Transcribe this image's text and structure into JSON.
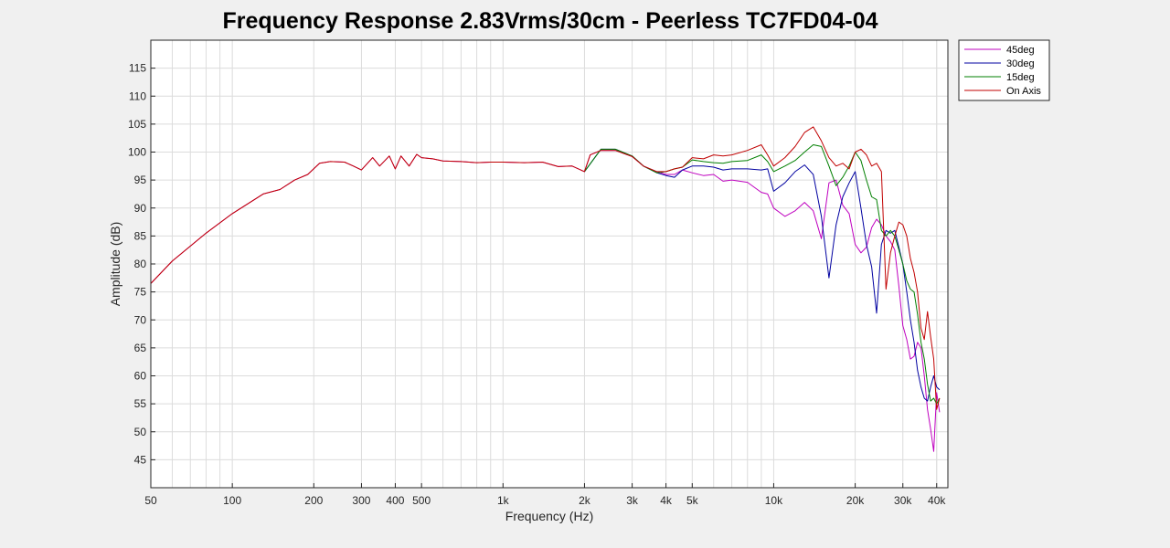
{
  "chart_data": {
    "type": "line",
    "title": "Frequency Response 2.83Vrms/30cm - Peerless TC7FD04-04",
    "xlabel": "Frequency (Hz)",
    "ylabel": "Amplitude (dB)",
    "xscale": "log",
    "xlim": [
      50,
      44000
    ],
    "ylim": [
      40,
      120
    ],
    "grid": true,
    "legend_position": "outside-top-right",
    "x_ticks": [
      50,
      100,
      200,
      300,
      400,
      500,
      1000,
      2000,
      3000,
      4000,
      5000,
      10000,
      20000,
      30000,
      40000
    ],
    "x_tick_labels": [
      "50",
      "100",
      "200",
      "300",
      "400",
      "500",
      "1k",
      "2k",
      "3k",
      "4k",
      "5k",
      "10k",
      "20k",
      "30k",
      "40k"
    ],
    "y_ticks": [
      45,
      50,
      55,
      60,
      65,
      70,
      75,
      80,
      85,
      90,
      95,
      100,
      105,
      110,
      115
    ],
    "y_tick_labels": [
      "45",
      "50",
      "55",
      "60",
      "65",
      "70",
      "75",
      "80",
      "85",
      "90",
      "95",
      "100",
      "105",
      "110",
      "115"
    ],
    "series": [
      {
        "name": "45deg",
        "color": "#bf00bf",
        "x": [
          50,
          60,
          80,
          100,
          130,
          150,
          170,
          190,
          210,
          230,
          260,
          280,
          300,
          330,
          350,
          380,
          400,
          420,
          450,
          480,
          500,
          550,
          600,
          700,
          800,
          900,
          1000,
          1200,
          1400,
          1600,
          1800,
          2000,
          2100,
          2300,
          2600,
          3000,
          3300,
          3700,
          4000,
          4300,
          4600,
          5000,
          5500,
          6000,
          6500,
          7000,
          8000,
          9000,
          9500,
          10000,
          11000,
          12000,
          13000,
          14000,
          15000,
          16000,
          17000,
          18000,
          19000,
          20000,
          21000,
          22000,
          23000,
          24000,
          25000,
          26000,
          27000,
          28000,
          29000,
          30000,
          31000,
          32000,
          33000,
          34000,
          35000,
          36000,
          37000,
          38000,
          39000,
          40000,
          41000
        ],
        "y": [
          76.5,
          80.5,
          85.5,
          89,
          92.5,
          93.3,
          95,
          96,
          98,
          98.3,
          98.2,
          97.5,
          96.8,
          99,
          97.5,
          99.3,
          97,
          99.3,
          97.5,
          99.6,
          99,
          98.8,
          98.4,
          98.3,
          98.1,
          98.2,
          98.2,
          98.1,
          98.2,
          97.4,
          97.5,
          96.5,
          99.5,
          100.3,
          100.3,
          99.2,
          97.5,
          96.5,
          96,
          96,
          96.8,
          96.3,
          95.8,
          96,
          94.8,
          95,
          94.6,
          92.8,
          92.5,
          90,
          88.5,
          89.5,
          91,
          89.5,
          84.5,
          94.5,
          95,
          90.5,
          89,
          83.5,
          82,
          83,
          86.5,
          88,
          87,
          85,
          84,
          82.5,
          76,
          69,
          66.5,
          63,
          63.5,
          66,
          65,
          60,
          54,
          50.5,
          46.5,
          57,
          53.5
        ]
      },
      {
        "name": "30deg",
        "color": "#0000a0",
        "x": [
          2000,
          2300,
          2600,
          3000,
          3300,
          3700,
          4000,
          4300,
          4600,
          5000,
          5500,
          6000,
          6500,
          7000,
          8000,
          9000,
          9500,
          10000,
          11000,
          12000,
          13000,
          14000,
          15000,
          16000,
          17000,
          18000,
          19000,
          20000,
          21000,
          22000,
          23000,
          24000,
          25000,
          26000,
          27000,
          28000,
          29000,
          30000,
          31000,
          32000,
          33000,
          34000,
          35000,
          36000,
          37000,
          38000,
          39000,
          40000,
          41000
        ],
        "y": [
          96.5,
          100.5,
          100.5,
          99.3,
          97.5,
          96.3,
          95.8,
          95.5,
          96.8,
          97.5,
          97.5,
          97.3,
          96.8,
          97,
          97,
          96.8,
          97,
          93,
          94.5,
          96.5,
          97.7,
          96,
          88.5,
          77.5,
          87,
          92,
          94.5,
          96.5,
          90,
          83.5,
          79.5,
          71.2,
          83.5,
          86,
          85.5,
          86,
          83,
          80,
          75,
          70,
          66,
          61,
          58,
          56,
          55.5,
          58,
          60,
          58,
          57.5
        ]
      },
      {
        "name": "15deg",
        "color": "#007f00",
        "x": [
          2000,
          2300,
          2600,
          3000,
          3300,
          3700,
          4000,
          4300,
          4600,
          5000,
          5500,
          6000,
          6500,
          7000,
          8000,
          9000,
          9500,
          10000,
          11000,
          12000,
          13000,
          14000,
          15000,
          16000,
          17000,
          18000,
          19000,
          20000,
          21000,
          22000,
          23000,
          24000,
          25000,
          26000,
          27000,
          28000,
          29000,
          30000,
          31000,
          32000,
          33000,
          34000,
          35000,
          36000,
          37000,
          38000,
          39000,
          40000,
          41000
        ],
        "y": [
          96.5,
          100.5,
          100.5,
          99.3,
          97.5,
          96.3,
          96.5,
          97,
          97.3,
          98.6,
          98.3,
          98.1,
          98,
          98.3,
          98.5,
          99.5,
          98.3,
          96.5,
          97.5,
          98.5,
          100,
          101.3,
          101,
          97.5,
          94,
          95.5,
          97.5,
          100,
          98.5,
          95,
          92,
          91.5,
          86,
          85,
          86,
          85,
          82.5,
          80,
          77,
          75.5,
          75,
          71,
          66,
          63,
          58.5,
          55.5,
          56,
          55,
          56
        ]
      },
      {
        "name": "On Axis",
        "color": "#c00000",
        "x": [
          50,
          60,
          80,
          100,
          130,
          150,
          170,
          190,
          210,
          230,
          260,
          280,
          300,
          330,
          350,
          380,
          400,
          420,
          450,
          480,
          500,
          550,
          600,
          700,
          800,
          900,
          1000,
          1200,
          1400,
          1600,
          1800,
          2000,
          2100,
          2300,
          2600,
          3000,
          3300,
          3700,
          4000,
          4300,
          4600,
          5000,
          5500,
          6000,
          6500,
          7000,
          8000,
          9000,
          9500,
          10000,
          11000,
          12000,
          13000,
          14000,
          15000,
          16000,
          17000,
          18000,
          19000,
          20000,
          21000,
          22000,
          23000,
          24000,
          25000,
          26000,
          27000,
          28000,
          29000,
          30000,
          31000,
          32000,
          33000,
          34000,
          35000,
          36000,
          37000,
          38000,
          39000,
          40000,
          41000
        ],
        "y": [
          76.5,
          80.5,
          85.5,
          89,
          92.5,
          93.3,
          95,
          96,
          98,
          98.3,
          98.2,
          97.5,
          96.8,
          99,
          97.5,
          99.3,
          97,
          99.3,
          97.5,
          99.6,
          99,
          98.8,
          98.4,
          98.3,
          98.1,
          98.2,
          98.2,
          98.1,
          98.2,
          97.4,
          97.5,
          96.5,
          99.5,
          100.3,
          100.3,
          99.2,
          97.5,
          96.5,
          96.5,
          97,
          97.3,
          99,
          98.8,
          99.5,
          99.3,
          99.5,
          100.3,
          101.3,
          99.5,
          97.5,
          99,
          101,
          103.5,
          104.5,
          102,
          99,
          97.5,
          98,
          97,
          100,
          100.5,
          99.5,
          97.5,
          98,
          96.5,
          75.5,
          82,
          85,
          87.5,
          87,
          85,
          81,
          78.5,
          75,
          68.5,
          66.5,
          71.5,
          67,
          63,
          54,
          56
        ]
      }
    ]
  }
}
